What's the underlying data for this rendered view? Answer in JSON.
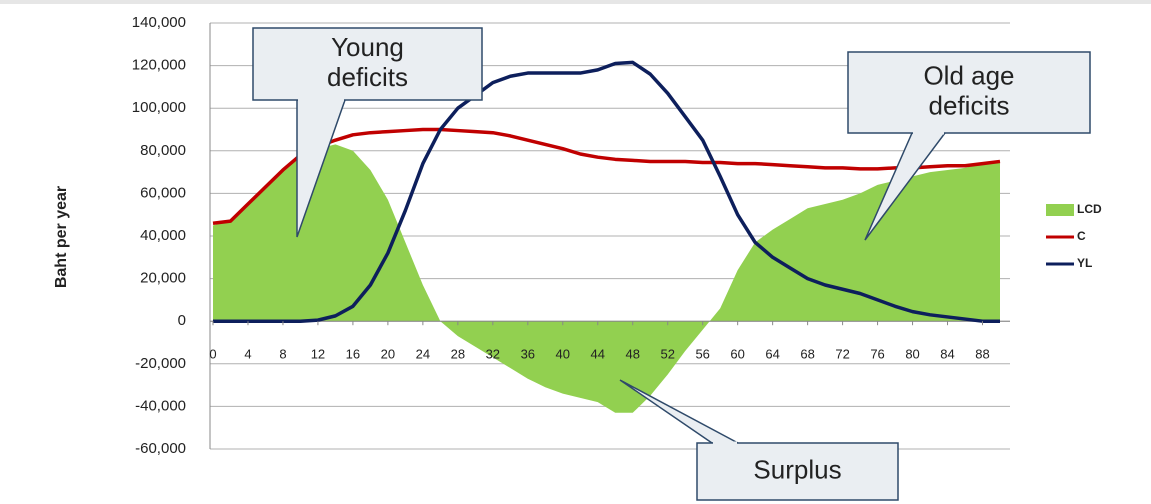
{
  "chart_data": {
    "type": "area_line",
    "y_label": "Baht per year",
    "x": [
      0,
      2,
      4,
      6,
      8,
      10,
      12,
      14,
      16,
      18,
      20,
      22,
      24,
      26,
      28,
      30,
      32,
      34,
      36,
      38,
      40,
      42,
      44,
      46,
      48,
      50,
      52,
      54,
      56,
      58,
      60,
      62,
      64,
      66,
      68,
      70,
      72,
      74,
      76,
      78,
      80,
      82,
      84,
      86,
      88,
      90
    ],
    "xlim": [
      0,
      90
    ],
    "xticks": [
      0,
      4,
      8,
      12,
      16,
      20,
      24,
      28,
      32,
      36,
      40,
      44,
      48,
      52,
      56,
      60,
      64,
      68,
      72,
      76,
      80,
      84,
      88
    ],
    "ylim": [
      -60000,
      140000
    ],
    "yticks": [
      {
        "value": -60000,
        "label": "-60,000"
      },
      {
        "value": -40000,
        "label": "-40,000"
      },
      {
        "value": -20000,
        "label": "-20,000"
      },
      0,
      {
        "value": 20000,
        "label": "20,000"
      },
      {
        "value": 40000,
        "label": "40,000"
      },
      {
        "value": 60000,
        "label": "60,000"
      },
      {
        "value": 80000,
        "label": "80,000"
      },
      {
        "value": 100000,
        "label": "100,000"
      },
      {
        "value": 120000,
        "label": "120,000"
      },
      {
        "value": 140000,
        "label": "140,000"
      }
    ],
    "grid": true,
    "legend": "right",
    "series": [
      {
        "name": "LCD",
        "color": "#92d050",
        "kind": "area",
        "values": [
          45000,
          47000,
          55000,
          63000,
          71000,
          78000,
          81000,
          83000,
          80000,
          71000,
          57000,
          37000,
          17000,
          0,
          -7000,
          -12000,
          -17000,
          -22000,
          -27000,
          -31000,
          -34000,
          -36000,
          -38000,
          -43000,
          -43000,
          -35000,
          -25000,
          -14000,
          -4000,
          6000,
          24000,
          37000,
          43000,
          48000,
          53000,
          55000,
          57000,
          60000,
          64000,
          66000,
          68000,
          70000,
          71000,
          72000,
          74000,
          75000
        ]
      },
      {
        "name": "C",
        "color": "#c00000",
        "kind": "line",
        "values": [
          46000,
          47000,
          55000,
          63000,
          71000,
          78000,
          82000,
          85000,
          87500,
          88500,
          89000,
          89500,
          90000,
          90000,
          89500,
          89000,
          88500,
          87000,
          85000,
          83000,
          81000,
          78500,
          77000,
          76000,
          75500,
          75000,
          75000,
          75000,
          74500,
          74500,
          74000,
          74000,
          73500,
          73000,
          72500,
          72000,
          72000,
          71500,
          71500,
          72000,
          72000,
          72500,
          73000,
          73000,
          74000,
          75000
        ]
      },
      {
        "name": "YL",
        "color": "#0d1f5c",
        "kind": "line",
        "values": [
          0,
          0,
          0,
          0,
          0,
          0,
          500,
          2500,
          7000,
          17000,
          32000,
          52000,
          74000,
          90000,
          100000,
          106000,
          112000,
          115000,
          116500,
          116500,
          116500,
          116500,
          118000,
          121000,
          121500,
          116000,
          107000,
          96000,
          85000,
          68000,
          50000,
          37000,
          30000,
          25000,
          20000,
          17000,
          15000,
          13000,
          10000,
          7000,
          4500,
          3000,
          2000,
          1000,
          0,
          0
        ]
      }
    ],
    "annotations": [
      {
        "text": [
          "Young",
          "deficits"
        ]
      },
      {
        "text": [
          "Old age",
          "deficits"
        ]
      },
      {
        "text": [
          "Surplus"
        ]
      }
    ]
  }
}
